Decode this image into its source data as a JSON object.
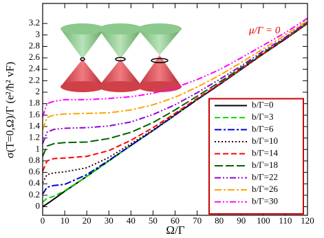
{
  "chart_data": {
    "type": "line",
    "xlabel": "Ω/Γ",
    "ylabel": "σ(T=0,Ω)/Γ (e²/ħ² vF)",
    "annotation": "μ/Γ = 0",
    "x": [
      0,
      2,
      5,
      10,
      20,
      30,
      40,
      50,
      60,
      70,
      80,
      90,
      100,
      110,
      120
    ],
    "series": [
      {
        "name": "b/Γ=0",
        "color": "#000000",
        "linestyle": "solid",
        "values": [
          0,
          0.05,
          0.13,
          0.27,
          0.53,
          0.8,
          1.07,
          1.33,
          1.6,
          1.87,
          2.13,
          2.4,
          2.67,
          2.93,
          3.2
        ]
      },
      {
        "name": "b/Γ=3",
        "color": "#00dd00",
        "linestyle": "dashed",
        "values": [
          0.08,
          0.15,
          0.18,
          0.28,
          0.53,
          0.8,
          1.07,
          1.33,
          1.6,
          1.87,
          2.13,
          2.4,
          2.67,
          2.93,
          3.2
        ]
      },
      {
        "name": "b/Γ=6",
        "color": "#0000cc",
        "linestyle": "dashdot",
        "values": [
          0.22,
          0.34,
          0.37,
          0.39,
          0.56,
          0.81,
          1.07,
          1.33,
          1.6,
          1.87,
          2.13,
          2.4,
          2.67,
          2.93,
          3.2
        ]
      },
      {
        "name": "b/Γ=10",
        "color": "#330000",
        "linestyle": "dotted",
        "values": [
          0.42,
          0.56,
          0.59,
          0.61,
          0.68,
          0.86,
          1.1,
          1.34,
          1.61,
          1.87,
          2.13,
          2.4,
          2.67,
          2.93,
          3.2
        ]
      },
      {
        "name": "b/Γ=14",
        "color": "#ff0000",
        "linestyle": "dashed",
        "values": [
          0.62,
          0.8,
          0.84,
          0.85,
          0.88,
          0.98,
          1.16,
          1.38,
          1.63,
          1.89,
          2.14,
          2.41,
          2.67,
          2.94,
          3.2
        ]
      },
      {
        "name": "b/Γ=18",
        "color": "#006400",
        "linestyle": "longdash",
        "values": [
          0.88,
          1.06,
          1.1,
          1.12,
          1.13,
          1.19,
          1.3,
          1.47,
          1.69,
          1.93,
          2.17,
          2.43,
          2.69,
          2.95,
          3.21
        ]
      },
      {
        "name": "b/Γ=22",
        "color": "#9400d3",
        "linestyle": "dashdotdot",
        "values": [
          1.1,
          1.3,
          1.35,
          1.37,
          1.38,
          1.41,
          1.48,
          1.61,
          1.78,
          1.99,
          2.22,
          2.46,
          2.72,
          2.96,
          3.23
        ]
      },
      {
        "name": "b/Γ=26",
        "color": "#ffa500",
        "linestyle": "dashdot",
        "values": [
          1.35,
          1.56,
          1.6,
          1.62,
          1.63,
          1.64,
          1.69,
          1.78,
          1.91,
          2.09,
          2.29,
          2.52,
          2.76,
          3.0,
          3.25
        ]
      },
      {
        "name": "b/Γ=30",
        "color": "#ff00ff",
        "linestyle": "dashdotdot",
        "values": [
          1.57,
          1.8,
          1.84,
          1.87,
          1.87,
          1.89,
          1.92,
          1.98,
          2.08,
          2.22,
          2.39,
          2.6,
          2.82,
          3.04,
          3.29
        ]
      }
    ],
    "xlim": [
      0,
      120
    ],
    "xticks": [
      0,
      10,
      20,
      30,
      40,
      50,
      60,
      70,
      80,
      90,
      100,
      110,
      120
    ],
    "ylim": [
      -0.15,
      3.55
    ],
    "yticks": [
      0,
      0.2,
      0.4,
      0.6,
      0.8,
      1,
      1.2,
      1.4,
      1.6,
      1.8,
      2,
      2.2,
      2.4,
      2.6,
      2.8,
      3,
      3.2
    ],
    "legend": "lower right",
    "legend_border_color": "#cc0000",
    "annotation_color": "#dd0000"
  }
}
